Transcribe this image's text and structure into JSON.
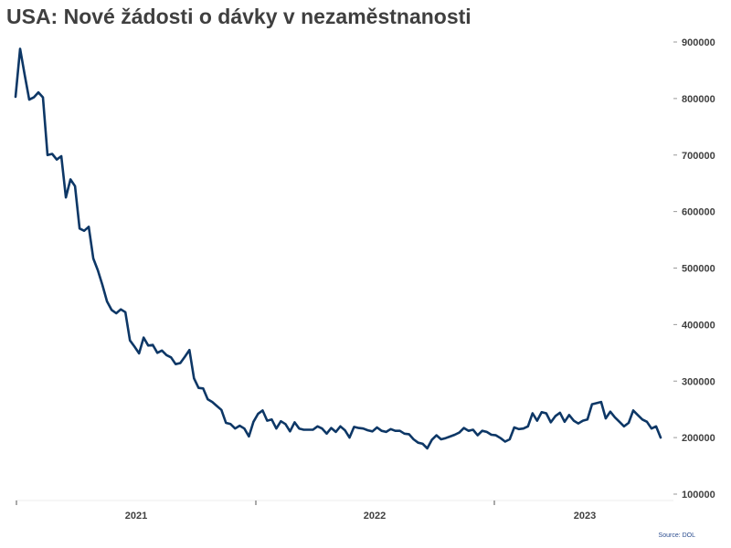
{
  "title": "USA: Nové žádosti o dávky v nezaměstnanosti",
  "source": "Source: DOL",
  "colors": {
    "line": "#0d3766",
    "text": "#3f3f3f",
    "axis": "#cccccc",
    "grid": "#f0f0f0",
    "source": "#2b4d8f"
  },
  "chart_data": {
    "type": "line",
    "title": "USA: Nové žádosti o dávky v nezaměstnanosti",
    "xlabel": "",
    "ylabel": "",
    "ylim": [
      100000,
      900000
    ],
    "yticks": [
      900000,
      800000,
      700000,
      600000,
      500000,
      400000,
      300000,
      200000,
      100000
    ],
    "ytick_labels": [
      "900000",
      "800000",
      "700000",
      "600000",
      "500000",
      "400000",
      "300000",
      "200000",
      "100000"
    ],
    "y_axis_position": "right",
    "x_tick_labels": [
      "2021",
      "2022",
      "2023"
    ],
    "grid": false,
    "legend": "none",
    "series": [
      {
        "values": [
          803000,
          888000,
          842000,
          798000,
          802000,
          811000,
          802000,
          700000,
          702000,
          692000,
          698000,
          625000,
          657000,
          645000,
          570000,
          566000,
          573000,
          517000,
          496000,
          470000,
          441000,
          426000,
          420000,
          427000,
          422000,
          372000,
          361000,
          349000,
          377000,
          363000,
          364000,
          350000,
          354000,
          346000,
          342000,
          330000,
          332000,
          343000,
          355000,
          305000,
          288000,
          287000,
          268000,
          263000,
          256000,
          249000,
          226000,
          224000,
          216000,
          221000,
          216000,
          202000,
          228000,
          242000,
          248000,
          230000,
          232000,
          216000,
          229000,
          224000,
          211000,
          227000,
          216000,
          214000,
          214000,
          214000,
          220000,
          216000,
          207000,
          217000,
          210000,
          220000,
          213000,
          200000,
          219000,
          217000,
          216000,
          213000,
          211000,
          218000,
          212000,
          210000,
          215000,
          212000,
          212000,
          207000,
          206000,
          197000,
          191000,
          189000,
          181000,
          196000,
          204000,
          197000,
          199000,
          202000,
          205000,
          209000,
          217000,
          212000,
          214000,
          204000,
          212000,
          210000,
          205000,
          204000,
          199000,
          193000,
          197000,
          218000,
          215000,
          216000,
          220000,
          243000,
          230000,
          245000,
          243000,
          227000,
          238000,
          244000,
          228000,
          240000,
          230000,
          225000,
          230000,
          232000,
          259000,
          261000,
          263000,
          234000,
          246000,
          236000,
          228000,
          220000,
          226000,
          248000,
          240000,
          232000,
          228000,
          216000,
          220000,
          200000
        ]
      }
    ]
  }
}
